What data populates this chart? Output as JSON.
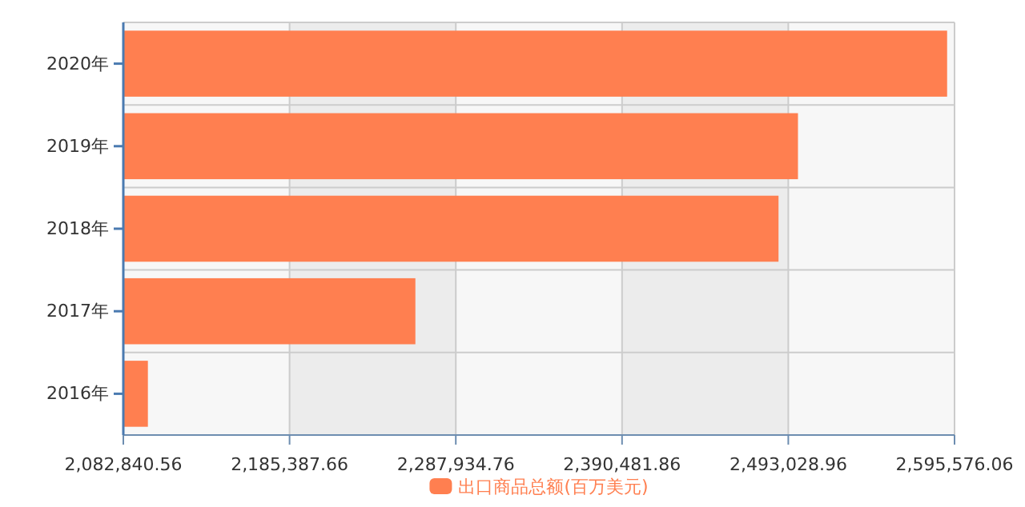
{
  "chart_data": {
    "type": "bar",
    "orientation": "horizontal",
    "categories": [
      "2020年",
      "2019年",
      "2018年",
      "2017年",
      "2016年"
    ],
    "series": [
      {
        "name": "出口商品总额(百万美元)",
        "color": "#ff7f50",
        "values": [
          2591000,
          2499000,
          2487000,
          2263000,
          2098000
        ]
      }
    ],
    "xlim": [
      2082840.56,
      2595576.06
    ],
    "xticks": [
      {
        "value": 2082840.56,
        "label": "2,082,840.56"
      },
      {
        "value": 2185387.66,
        "label": "2,185,387.66"
      },
      {
        "value": 2287934.76,
        "label": "2,287,934.76"
      },
      {
        "value": 2390481.86,
        "label": "2,390,481.86"
      },
      {
        "value": 2493028.96,
        "label": "2,493,028.96"
      },
      {
        "value": 2595576.06,
        "label": "2,595,576.06"
      }
    ],
    "grid": true,
    "legend": "bottom"
  }
}
